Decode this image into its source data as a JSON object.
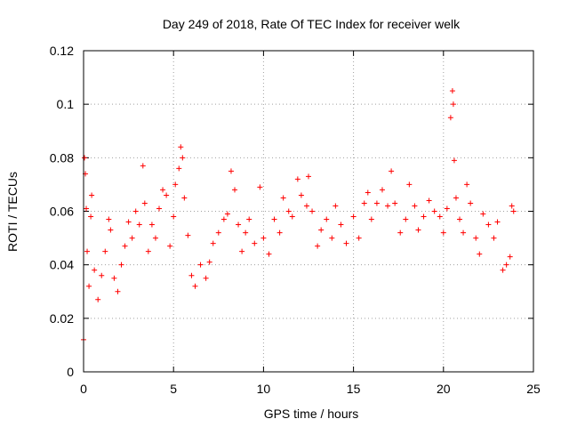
{
  "chart_data": {
    "type": "scatter",
    "title": "Day 249 of 2018, Rate Of TEC Index for receiver welk",
    "xlabel": "GPS time / hours",
    "ylabel": "ROTI / TECUs",
    "xlim": [
      0,
      25
    ],
    "ylim": [
      0,
      0.12
    ],
    "x_ticks": [
      0,
      5,
      10,
      15,
      20,
      25
    ],
    "x_tick_labels": [
      "0",
      "5",
      "10",
      "15",
      "20",
      "25"
    ],
    "y_ticks": [
      0,
      0.02,
      0.04,
      0.06,
      0.08,
      0.1,
      0.12
    ],
    "y_tick_labels": [
      "0",
      "0.02",
      "0.04",
      "0.06",
      "0.08",
      "0.1",
      "0.12"
    ],
    "grid": true,
    "marker": "plus",
    "color": "#ff0000",
    "series": [
      {
        "points": [
          [
            0.0,
            0.012
          ],
          [
            0.05,
            0.08
          ],
          [
            0.1,
            0.074
          ],
          [
            0.15,
            0.061
          ],
          [
            0.2,
            0.045
          ],
          [
            0.3,
            0.032
          ],
          [
            0.4,
            0.058
          ],
          [
            0.45,
            0.066
          ],
          [
            0.6,
            0.038
          ],
          [
            0.8,
            0.027
          ],
          [
            1.0,
            0.036
          ],
          [
            1.2,
            0.045
          ],
          [
            1.4,
            0.057
          ],
          [
            1.5,
            0.053
          ],
          [
            1.7,
            0.035
          ],
          [
            1.9,
            0.03
          ],
          [
            2.1,
            0.04
          ],
          [
            2.3,
            0.047
          ],
          [
            2.5,
            0.056
          ],
          [
            2.7,
            0.05
          ],
          [
            2.9,
            0.06
          ],
          [
            3.1,
            0.055
          ],
          [
            3.3,
            0.077
          ],
          [
            3.4,
            0.063
          ],
          [
            3.6,
            0.045
          ],
          [
            3.8,
            0.055
          ],
          [
            4.0,
            0.05
          ],
          [
            4.2,
            0.061
          ],
          [
            4.4,
            0.068
          ],
          [
            4.6,
            0.066
          ],
          [
            4.8,
            0.047
          ],
          [
            5.0,
            0.058
          ],
          [
            5.1,
            0.07
          ],
          [
            5.3,
            0.076
          ],
          [
            5.4,
            0.084
          ],
          [
            5.5,
            0.08
          ],
          [
            5.6,
            0.065
          ],
          [
            5.8,
            0.051
          ],
          [
            6.0,
            0.036
          ],
          [
            6.2,
            0.032
          ],
          [
            6.5,
            0.04
          ],
          [
            6.8,
            0.035
          ],
          [
            7.0,
            0.041
          ],
          [
            7.2,
            0.048
          ],
          [
            7.5,
            0.052
          ],
          [
            7.8,
            0.057
          ],
          [
            8.0,
            0.059
          ],
          [
            8.2,
            0.075
          ],
          [
            8.4,
            0.068
          ],
          [
            8.6,
            0.055
          ],
          [
            8.8,
            0.045
          ],
          [
            9.0,
            0.052
          ],
          [
            9.2,
            0.057
          ],
          [
            9.5,
            0.048
          ],
          [
            9.8,
            0.069
          ],
          [
            10.0,
            0.05
          ],
          [
            10.3,
            0.044
          ],
          [
            10.6,
            0.057
          ],
          [
            10.9,
            0.052
          ],
          [
            11.1,
            0.065
          ],
          [
            11.4,
            0.06
          ],
          [
            11.6,
            0.058
          ],
          [
            11.9,
            0.072
          ],
          [
            12.1,
            0.066
          ],
          [
            12.4,
            0.062
          ],
          [
            12.5,
            0.073
          ],
          [
            12.7,
            0.06
          ],
          [
            13.0,
            0.047
          ],
          [
            13.2,
            0.053
          ],
          [
            13.5,
            0.057
          ],
          [
            13.8,
            0.05
          ],
          [
            14.0,
            0.062
          ],
          [
            14.3,
            0.055
          ],
          [
            14.6,
            0.048
          ],
          [
            15.0,
            0.058
          ],
          [
            15.3,
            0.05
          ],
          [
            15.6,
            0.063
          ],
          [
            15.8,
            0.067
          ],
          [
            16.0,
            0.057
          ],
          [
            16.3,
            0.063
          ],
          [
            16.6,
            0.068
          ],
          [
            16.9,
            0.062
          ],
          [
            17.1,
            0.075
          ],
          [
            17.3,
            0.063
          ],
          [
            17.6,
            0.052
          ],
          [
            17.9,
            0.057
          ],
          [
            18.1,
            0.07
          ],
          [
            18.4,
            0.062
          ],
          [
            18.6,
            0.053
          ],
          [
            18.9,
            0.058
          ],
          [
            19.2,
            0.064
          ],
          [
            19.5,
            0.06
          ],
          [
            19.8,
            0.058
          ],
          [
            20.0,
            0.052
          ],
          [
            20.2,
            0.061
          ],
          [
            20.4,
            0.095
          ],
          [
            20.5,
            0.105
          ],
          [
            20.55,
            0.1
          ],
          [
            20.6,
            0.079
          ],
          [
            20.7,
            0.065
          ],
          [
            20.9,
            0.057
          ],
          [
            21.1,
            0.052
          ],
          [
            21.3,
            0.07
          ],
          [
            21.5,
            0.063
          ],
          [
            21.8,
            0.05
          ],
          [
            22.0,
            0.044
          ],
          [
            22.2,
            0.059
          ],
          [
            22.5,
            0.055
          ],
          [
            22.8,
            0.05
          ],
          [
            23.0,
            0.056
          ],
          [
            23.3,
            0.038
          ],
          [
            23.5,
            0.04
          ],
          [
            23.7,
            0.043
          ],
          [
            23.8,
            0.062
          ],
          [
            23.9,
            0.06
          ]
        ]
      }
    ]
  }
}
